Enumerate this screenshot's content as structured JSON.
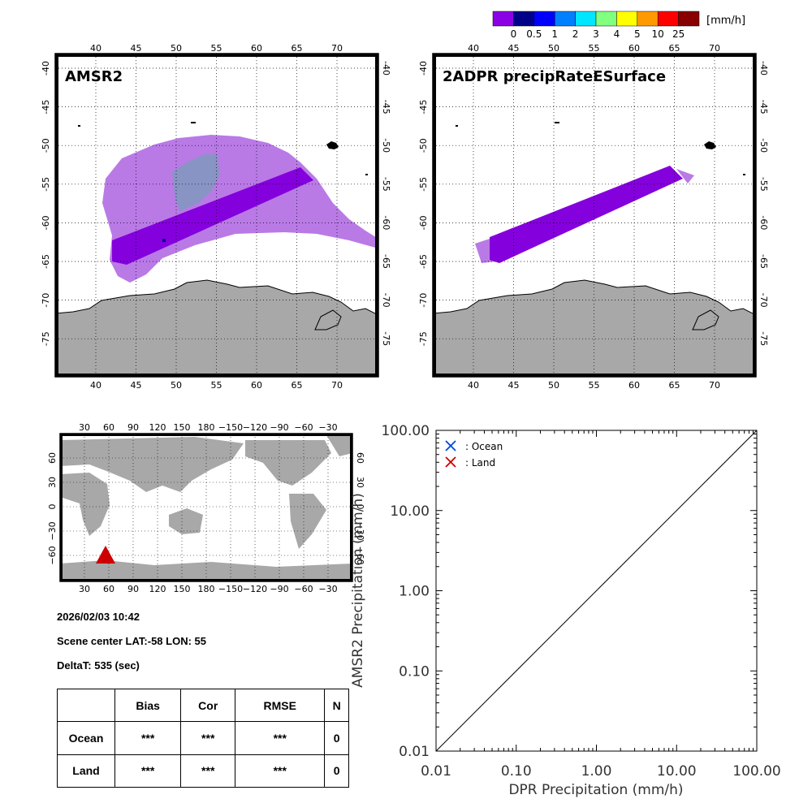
{
  "colorbar": {
    "unit": "[mm/h]",
    "colors": [
      "#8c00e6",
      "#000088",
      "#0000ff",
      "#0080ff",
      "#00e6ff",
      "#80ff80",
      "#ffff00",
      "#ff9900",
      "#ff0000",
      "#880000"
    ],
    "labels": [
      "0",
      "0.5",
      "1",
      "2",
      "3",
      "4",
      "5",
      "10",
      "25"
    ]
  },
  "map_left": {
    "title": "AMSR2"
  },
  "map_right": {
    "title": "2ADPR precipRateESurface"
  },
  "map_axes": {
    "lon_ticks": [
      "40",
      "45",
      "50",
      "55",
      "60",
      "65",
      "70"
    ],
    "lat_ticks": [
      "-40",
      "-45",
      "-50",
      "-55",
      "-60",
      "-65",
      "-70",
      "-75"
    ]
  },
  "world_map": {
    "lon_ticks": [
      "30",
      "60",
      "90",
      "120",
      "150",
      "180",
      "−150",
      "−120",
      "−90",
      "−60",
      "−30"
    ],
    "lat_ticks": [
      "60",
      "30",
      "0",
      "−30",
      "−60"
    ],
    "marker_color": "#cc0000"
  },
  "info": {
    "datetime": "2026/02/03 10:42",
    "scene_center": "Scene center LAT:-58   LON:  55",
    "deltat": "DeltaT:  535 (sec)"
  },
  "stats": {
    "headers": [
      "",
      "Bias",
      "Cor",
      "RMSE",
      "N"
    ],
    "rows": [
      {
        "label": "Ocean",
        "bias": "***",
        "cor": "***",
        "rmse": "***",
        "n": "0"
      },
      {
        "label": "Land",
        "bias": "***",
        "cor": "***",
        "rmse": "***",
        "n": "0"
      }
    ]
  },
  "chart_data": {
    "type": "scatter",
    "xlabel": "DPR Precipitation (mm/h)",
    "ylabel": "AMSR2 Precipitation (mm/h)",
    "xscale": "log",
    "yscale": "log",
    "xlim": [
      0.01,
      100
    ],
    "ylim": [
      0.01,
      100
    ],
    "xticks": [
      "0.01",
      "0.10",
      "1.00",
      "10.00",
      "100.00"
    ],
    "yticks": [
      "0.01",
      "0.10",
      "1.00",
      "10.00",
      "100.00"
    ],
    "legend": [
      {
        "name": ": Ocean",
        "marker": "x",
        "color": "#0044dd"
      },
      {
        "name": ": Land",
        "marker": "x",
        "color": "#cc0000"
      }
    ],
    "legend_position": "top-left",
    "reference_line": "y = x",
    "series": [
      {
        "name": "Ocean",
        "points": []
      },
      {
        "name": "Land",
        "points": []
      }
    ]
  }
}
